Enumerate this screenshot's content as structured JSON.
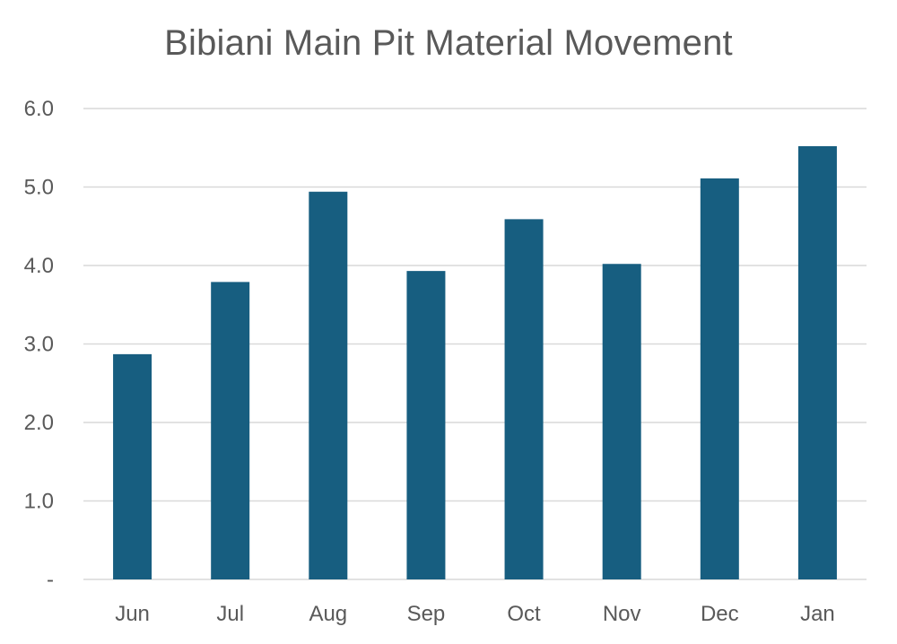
{
  "chart_data": {
    "type": "bar",
    "title": "Bibiani Main Pit Material Movement",
    "xlabel": "",
    "ylabel": "",
    "categories": [
      "Jun",
      "Jul",
      "Aug",
      "Sep",
      "Oct",
      "Nov",
      "Dec",
      "Jan"
    ],
    "values": [
      2.87,
      3.79,
      4.94,
      3.93,
      4.59,
      4.02,
      5.11,
      5.52
    ],
    "ylim": [
      0,
      6
    ],
    "yticks": [
      0,
      1,
      2,
      3,
      4,
      5,
      6
    ],
    "ytick_labels": [
      "-",
      "1.0",
      "2.0",
      "3.0",
      "4.0",
      "5.0",
      "6.0"
    ],
    "grid": true,
    "legend": "none",
    "bar_color": "#175e80"
  }
}
